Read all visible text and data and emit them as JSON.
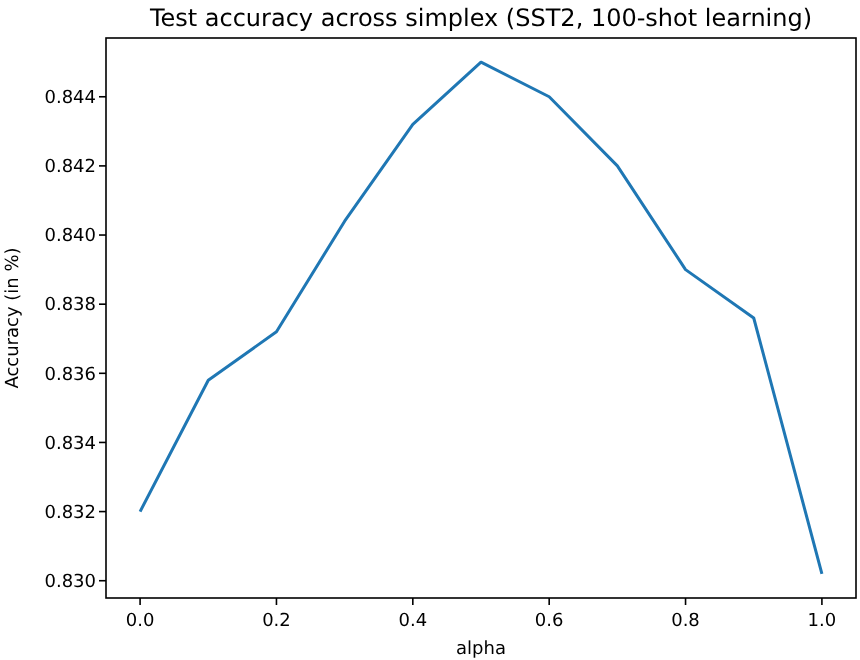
{
  "chart_data": {
    "type": "line",
    "title": "Test accuracy across simplex (SST2, 100-shot learning)",
    "xlabel": "alpha",
    "ylabel": "Accuracy (in %)",
    "x": [
      0.0,
      0.1,
      0.2,
      0.3,
      0.4,
      0.5,
      0.6,
      0.7,
      0.8,
      0.9,
      1.0
    ],
    "series": [
      {
        "color": "#1f77b4",
        "values": [
          0.832,
          0.8358,
          0.8372,
          0.8404,
          0.8432,
          0.845,
          0.844,
          0.842,
          0.839,
          0.8376,
          0.8302
        ]
      }
    ],
    "xlim": [
      -0.05,
      1.05
    ],
    "ylim": [
      0.8295,
      0.8457
    ],
    "xticks": [
      {
        "value": 0,
        "label": "0.0"
      },
      0.2,
      0.4,
      0.6,
      0.8,
      {
        "value": 1,
        "label": "1.0"
      }
    ],
    "yticks": [
      {
        "value": 0.83,
        "label": "0.830"
      },
      0.832,
      0.834,
      0.836,
      0.838,
      {
        "value": 0.84,
        "label": "0.840"
      },
      0.842,
      0.844
    ],
    "grid": false
  }
}
